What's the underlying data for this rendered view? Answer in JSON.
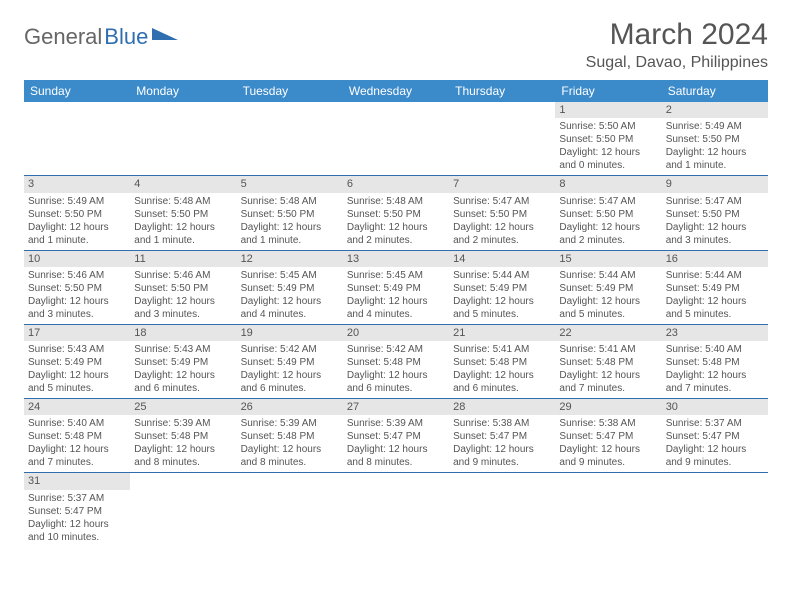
{
  "logo": {
    "part1": "General",
    "part2": "Blue"
  },
  "title": "March 2024",
  "location": "Sugal, Davao, Philippines",
  "colors": {
    "header_bg": "#3b8aca",
    "header_text": "#ffffff",
    "daynum_bg": "#e6e6e6",
    "cell_border": "#2f6fb0",
    "body_text": "#555555",
    "logo_blue": "#2f6fb0"
  },
  "weekdays": [
    "Sunday",
    "Monday",
    "Tuesday",
    "Wednesday",
    "Thursday",
    "Friday",
    "Saturday"
  ],
  "layout": {
    "first_weekday_index": 5,
    "days_in_month": 31,
    "cell_fontsize": 10,
    "header_fontsize": 12,
    "title_fontsize": 30,
    "location_fontsize": 16
  },
  "days": {
    "1": {
      "sunrise": "5:50 AM",
      "sunset": "5:50 PM",
      "daylight": "12 hours and 0 minutes."
    },
    "2": {
      "sunrise": "5:49 AM",
      "sunset": "5:50 PM",
      "daylight": "12 hours and 1 minute."
    },
    "3": {
      "sunrise": "5:49 AM",
      "sunset": "5:50 PM",
      "daylight": "12 hours and 1 minute."
    },
    "4": {
      "sunrise": "5:48 AM",
      "sunset": "5:50 PM",
      "daylight": "12 hours and 1 minute."
    },
    "5": {
      "sunrise": "5:48 AM",
      "sunset": "5:50 PM",
      "daylight": "12 hours and 1 minute."
    },
    "6": {
      "sunrise": "5:48 AM",
      "sunset": "5:50 PM",
      "daylight": "12 hours and 2 minutes."
    },
    "7": {
      "sunrise": "5:47 AM",
      "sunset": "5:50 PM",
      "daylight": "12 hours and 2 minutes."
    },
    "8": {
      "sunrise": "5:47 AM",
      "sunset": "5:50 PM",
      "daylight": "12 hours and 2 minutes."
    },
    "9": {
      "sunrise": "5:47 AM",
      "sunset": "5:50 PM",
      "daylight": "12 hours and 3 minutes."
    },
    "10": {
      "sunrise": "5:46 AM",
      "sunset": "5:50 PM",
      "daylight": "12 hours and 3 minutes."
    },
    "11": {
      "sunrise": "5:46 AM",
      "sunset": "5:50 PM",
      "daylight": "12 hours and 3 minutes."
    },
    "12": {
      "sunrise": "5:45 AM",
      "sunset": "5:49 PM",
      "daylight": "12 hours and 4 minutes."
    },
    "13": {
      "sunrise": "5:45 AM",
      "sunset": "5:49 PM",
      "daylight": "12 hours and 4 minutes."
    },
    "14": {
      "sunrise": "5:44 AM",
      "sunset": "5:49 PM",
      "daylight": "12 hours and 5 minutes."
    },
    "15": {
      "sunrise": "5:44 AM",
      "sunset": "5:49 PM",
      "daylight": "12 hours and 5 minutes."
    },
    "16": {
      "sunrise": "5:44 AM",
      "sunset": "5:49 PM",
      "daylight": "12 hours and 5 minutes."
    },
    "17": {
      "sunrise": "5:43 AM",
      "sunset": "5:49 PM",
      "daylight": "12 hours and 5 minutes."
    },
    "18": {
      "sunrise": "5:43 AM",
      "sunset": "5:49 PM",
      "daylight": "12 hours and 6 minutes."
    },
    "19": {
      "sunrise": "5:42 AM",
      "sunset": "5:49 PM",
      "daylight": "12 hours and 6 minutes."
    },
    "20": {
      "sunrise": "5:42 AM",
      "sunset": "5:48 PM",
      "daylight": "12 hours and 6 minutes."
    },
    "21": {
      "sunrise": "5:41 AM",
      "sunset": "5:48 PM",
      "daylight": "12 hours and 6 minutes."
    },
    "22": {
      "sunrise": "5:41 AM",
      "sunset": "5:48 PM",
      "daylight": "12 hours and 7 minutes."
    },
    "23": {
      "sunrise": "5:40 AM",
      "sunset": "5:48 PM",
      "daylight": "12 hours and 7 minutes."
    },
    "24": {
      "sunrise": "5:40 AM",
      "sunset": "5:48 PM",
      "daylight": "12 hours and 7 minutes."
    },
    "25": {
      "sunrise": "5:39 AM",
      "sunset": "5:48 PM",
      "daylight": "12 hours and 8 minutes."
    },
    "26": {
      "sunrise": "5:39 AM",
      "sunset": "5:48 PM",
      "daylight": "12 hours and 8 minutes."
    },
    "27": {
      "sunrise": "5:39 AM",
      "sunset": "5:47 PM",
      "daylight": "12 hours and 8 minutes."
    },
    "28": {
      "sunrise": "5:38 AM",
      "sunset": "5:47 PM",
      "daylight": "12 hours and 9 minutes."
    },
    "29": {
      "sunrise": "5:38 AM",
      "sunset": "5:47 PM",
      "daylight": "12 hours and 9 minutes."
    },
    "30": {
      "sunrise": "5:37 AM",
      "sunset": "5:47 PM",
      "daylight": "12 hours and 9 minutes."
    },
    "31": {
      "sunrise": "5:37 AM",
      "sunset": "5:47 PM",
      "daylight": "12 hours and 10 minutes."
    }
  },
  "labels": {
    "sunrise_prefix": "Sunrise: ",
    "sunset_prefix": "Sunset: ",
    "daylight_prefix": "Daylight: "
  }
}
